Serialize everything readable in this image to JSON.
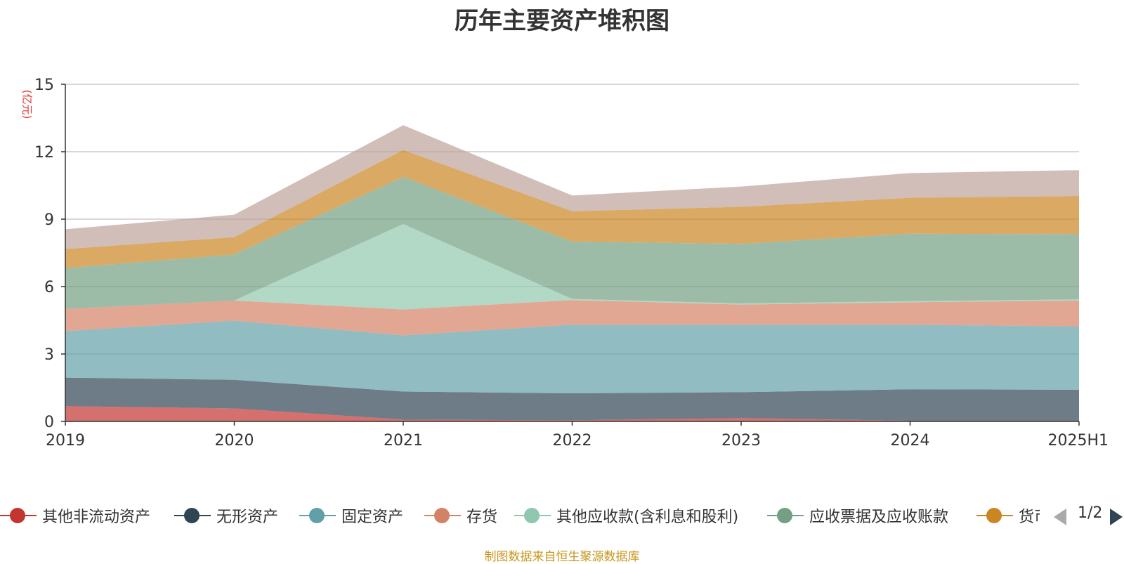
{
  "chart_data": {
    "type": "area",
    "stacked": true,
    "title": "历年主要资产堆积图",
    "unit_label": "(亿元)",
    "categories": [
      "2019",
      "2020",
      "2021",
      "2022",
      "2023",
      "2024",
      "2025H1"
    ],
    "ylim": [
      0,
      15
    ],
    "yticks": [
      "0",
      "3",
      "6",
      "9",
      "12",
      "15"
    ],
    "grid": true,
    "series": [
      {
        "name": "其他非流动资产",
        "color": "#c23531",
        "values": [
          0.68,
          0.58,
          0.08,
          0.05,
          0.15,
          0.03,
          0.03
        ]
      },
      {
        "name": "无形资产",
        "color": "#2f4554",
        "values": [
          1.27,
          1.27,
          1.25,
          1.2,
          1.15,
          1.4,
          1.38
        ]
      },
      {
        "name": "固定资产",
        "color": "#61a0a8",
        "values": [
          2.07,
          2.63,
          2.5,
          3.05,
          3.0,
          2.87,
          2.82
        ]
      },
      {
        "name": "存货",
        "color": "#d48265",
        "values": [
          0.98,
          0.9,
          1.15,
          1.1,
          0.9,
          1.0,
          1.15
        ]
      },
      {
        "name": "其他应收款(含利息和股利)",
        "color": "#91c7ae",
        "values": [
          0.0,
          0.0,
          3.8,
          0.05,
          0.05,
          0.05,
          0.05
        ]
      },
      {
        "name": "应收票据及应收账款",
        "color": "#749f83",
        "values": [
          1.82,
          2.05,
          2.1,
          2.55,
          2.65,
          3.0,
          2.9
        ]
      },
      {
        "name": "货币资金",
        "color": "#ca8622",
        "values": [
          0.85,
          0.77,
          1.2,
          1.35,
          1.65,
          1.6,
          1.7
        ]
      },
      {
        "name": "",
        "color": "#bda29a",
        "values": [
          0.88,
          1.0,
          1.1,
          0.7,
          0.9,
          1.1,
          1.15
        ]
      }
    ]
  },
  "legend": {
    "items": [
      {
        "label": "其他非流动资产",
        "color": "#c23531"
      },
      {
        "label": "无形资产",
        "color": "#2f4554"
      },
      {
        "label": "固定资产",
        "color": "#61a0a8"
      },
      {
        "label": "存货",
        "color": "#d48265"
      },
      {
        "label": "其他应收款(含利息和股利)",
        "color": "#91c7ae"
      },
      {
        "label": "应收票据及应收账款",
        "color": "#749f83"
      },
      {
        "label": "货币资金",
        "color": "#ca8622"
      }
    ],
    "page_indicator": "1/2"
  },
  "footer": {
    "source": "制图数据来自恒生聚源数据库"
  }
}
